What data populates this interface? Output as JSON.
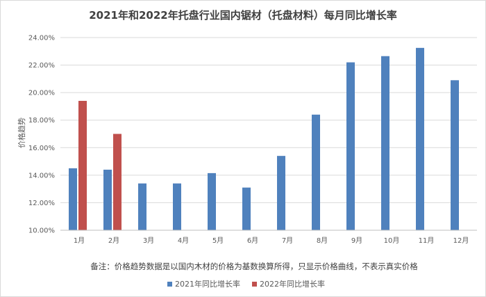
{
  "chart_data": {
    "type": "bar",
    "title": "2021年和2022年托盘行业国内锯材（托盘材料）每月同比增长率",
    "ylabel": "价格趋势",
    "xlabel": "",
    "categories": [
      "1月",
      "2月",
      "3月",
      "4月",
      "5月",
      "6月",
      "7月",
      "8月",
      "9月",
      "10月",
      "11月",
      "12月"
    ],
    "yticks": [
      "10.00%",
      "12.00%",
      "14.00%",
      "16.00%",
      "18.00%",
      "20.00%",
      "22.00%",
      "24.00%"
    ],
    "ylim": [
      10,
      24
    ],
    "grid": true,
    "legend_position": "bottom",
    "series": [
      {
        "name": "2021年同比增长率",
        "color": "#4f81bd",
        "values": [
          14.5,
          14.4,
          13.4,
          13.4,
          14.15,
          13.1,
          15.4,
          18.4,
          22.2,
          22.65,
          23.25,
          20.9
        ]
      },
      {
        "name": "2022年同比增长率",
        "color": "#c0504d",
        "values": [
          19.4,
          17.0,
          null,
          null,
          null,
          null,
          null,
          null,
          null,
          null,
          null,
          null
        ]
      }
    ],
    "note": "备注：价格趋势数据是以国内木材的价格为基数换算所得，只显示价格曲线，不表示真实价格"
  }
}
